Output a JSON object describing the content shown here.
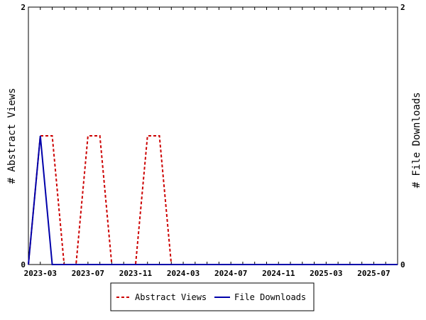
{
  "chart_data": {
    "type": "line",
    "ylabel_left": "# Abstract Views",
    "ylabel_right": "# File Downloads",
    "ylim": [
      0,
      2
    ],
    "y_ticks": [
      "0",
      "2"
    ],
    "x_tick_labels": [
      "2023-03",
      "2023-07",
      "2023-11",
      "2024-03",
      "2024-07",
      "2024-11",
      "2025-03",
      "2025-07"
    ],
    "x_months": [
      "2023-02",
      "2023-03",
      "2023-04",
      "2023-05",
      "2023-06",
      "2023-07",
      "2023-08",
      "2023-09",
      "2023-10",
      "2023-11",
      "2023-12",
      "2024-01",
      "2024-02",
      "2024-03",
      "2024-04",
      "2024-05",
      "2024-06",
      "2024-07",
      "2024-08",
      "2024-09",
      "2024-10",
      "2024-11",
      "2024-12",
      "2025-01",
      "2025-02",
      "2025-03",
      "2025-04",
      "2025-05",
      "2025-06",
      "2025-07",
      "2025-08",
      "2025-09"
    ],
    "series": [
      {
        "name": "Abstract Views",
        "color": "#cc0000",
        "dash": true,
        "values": [
          0,
          1,
          1,
          0,
          0,
          1,
          1,
          0,
          0,
          0,
          1,
          1,
          0,
          0,
          0,
          0,
          0,
          0,
          0,
          0,
          0,
          0,
          0,
          0,
          0,
          0,
          0,
          0,
          0,
          0,
          0,
          0
        ]
      },
      {
        "name": "File Downloads",
        "color": "#0000aa",
        "dash": false,
        "values": [
          0,
          1,
          0,
          0,
          0,
          0,
          0,
          0,
          0,
          0,
          0,
          0,
          0,
          0,
          0,
          0,
          0,
          0,
          0,
          0,
          0,
          0,
          0,
          0,
          0,
          0,
          0,
          0,
          0,
          0,
          0,
          0
        ]
      }
    ],
    "legend_position": "bottom"
  }
}
